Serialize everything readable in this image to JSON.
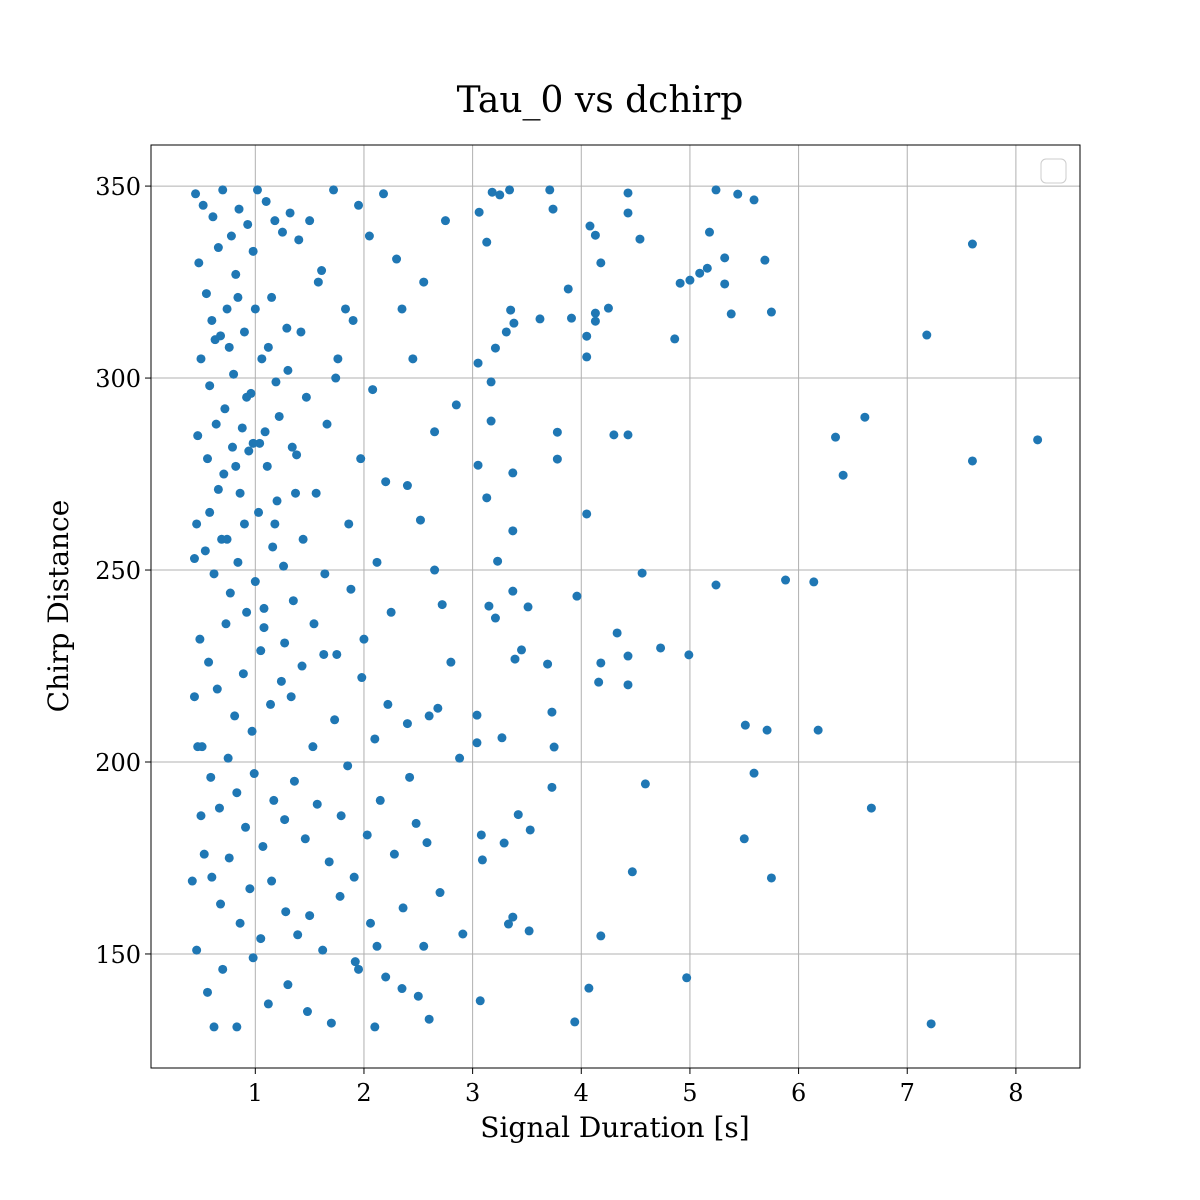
{
  "chart_data": {
    "type": "scatter",
    "title": "Tau_0 vs dchirp",
    "xlabel": "Signal Duration [s]",
    "ylabel": "Chirp Distance",
    "color": "#1f77b4",
    "grid": true,
    "xlim": [
      0.04,
      8.59
    ],
    "ylim": [
      120.3,
      360.7
    ],
    "xticks": [
      1,
      2,
      3,
      4,
      5,
      6,
      7,
      8
    ],
    "yticks": [
      150,
      200,
      250,
      300,
      350
    ],
    "x": [
      0.45,
      0.52,
      0.61,
      0.7,
      0.78,
      0.85,
      0.93,
      1.02,
      1.1,
      1.18,
      0.48,
      0.55,
      0.66,
      0.74,
      0.82,
      0.9,
      0.98,
      1.06,
      1.15,
      1.25,
      1.32,
      1.4,
      1.5,
      1.61,
      1.72,
      1.83,
      1.95,
      2.05,
      2.18,
      2.3,
      0.5,
      0.58,
      0.63,
      0.72,
      0.8,
      0.88,
      0.96,
      1.04,
      1.12,
      1.22,
      0.47,
      0.56,
      0.64,
      0.71,
      0.79,
      0.86,
      0.94,
      1.03,
      1.11,
      1.2,
      1.3,
      1.38,
      1.47,
      1.56,
      1.66,
      1.76,
      1.86,
      1.97,
      2.08,
      2.2,
      2.35,
      2.45,
      2.55,
      2.65,
      2.75,
      2.85,
      1.42,
      1.58,
      1.74,
      1.9,
      0.46,
      0.54,
      0.62,
      0.69,
      0.77,
      0.84,
      0.92,
      1.0,
      1.08,
      1.16,
      1.26,
      1.35,
      1.44,
      1.54,
      1.64,
      1.75,
      1.88,
      2.0,
      2.12,
      2.25,
      0.49,
      0.57,
      0.65,
      0.73,
      0.81,
      0.89,
      0.97,
      1.05,
      1.14,
      1.24,
      1.33,
      1.43,
      1.53,
      1.63,
      1.73,
      1.85,
      1.98,
      2.1,
      2.22,
      2.4,
      0.51,
      0.59,
      0.67,
      0.75,
      0.83,
      0.91,
      0.99,
      1.07,
      1.17,
      1.27,
      1.36,
      1.46,
      1.57,
      1.68,
      1.79,
      1.91,
      2.03,
      2.15,
      2.28,
      2.48,
      0.53,
      0.6,
      0.68,
      0.76,
      0.86,
      0.95,
      1.05,
      1.15,
      1.28,
      1.39,
      1.5,
      1.62,
      1.78,
      1.92,
      2.06,
      2.2,
      2.36,
      2.55,
      2.7,
      2.6,
      0.56,
      0.62,
      0.7,
      0.83,
      0.98,
      1.12,
      1.3,
      1.48,
      1.7,
      1.95,
      2.1,
      2.35,
      2.5,
      2.12,
      0.44,
      0.47,
      0.5,
      0.42,
      0.46,
      0.44,
      2.4,
      2.52,
      2.65,
      2.72,
      2.8,
      2.6,
      2.42,
      2.58,
      2.68,
      2.88,
      0.6,
      0.68,
      0.76,
      0.84,
      0.92,
      1.0,
      1.09,
      1.19,
      1.29,
      1.37,
      0.58,
      0.66,
      0.74,
      0.82,
      0.9,
      0.98,
      1.08,
      1.18,
      1.27,
      1.34,
      8.2,
      7.6,
      7.18,
      7.6,
      7.22,
      6.67,
      6.41,
      6.34,
      6.61,
      5.88,
      6.14,
      6.18,
      5.71,
      5.51,
      5.59,
      5.5,
      5.75,
      5.75,
      5.69,
      5.59,
      5.44,
      5.24,
      5.32,
      5.38,
      5.32,
      5.16,
      5.09,
      5.0,
      4.91,
      4.86,
      5.18,
      5.24,
      4.99,
      4.73,
      4.56,
      4.59,
      4.97,
      4.47,
      4.43,
      4.3,
      4.43,
      4.43,
      4.16,
      4.18,
      4.33,
      4.18,
      4.07,
      3.94,
      3.96,
      4.05,
      3.78,
      3.78,
      3.73,
      3.75,
      3.73,
      3.69,
      3.62,
      3.88,
      3.91,
      4.13,
      4.13,
      4.25,
      4.05,
      4.05,
      4.08,
      4.13,
      4.18,
      4.54,
      4.43,
      4.43,
      3.71,
      3.74,
      3.34,
      3.18,
      3.25,
      3.06,
      3.13,
      3.35,
      3.38,
      3.31,
      3.21,
      3.17,
      3.05,
      3.17,
      3.05,
      3.13,
      3.37,
      3.37,
      3.23,
      3.37,
      3.51,
      3.15,
      3.21,
      3.45,
      3.39,
      3.04,
      3.04,
      3.27,
      3.42,
      3.53,
      3.08,
      3.09,
      3.29,
      3.37,
      3.33,
      3.52,
      3.07,
      2.91
    ],
    "values": [
      348,
      345,
      342,
      349,
      337,
      344,
      340,
      349,
      346,
      341,
      330,
      322,
      334,
      318,
      327,
      312,
      333,
      305,
      321,
      338,
      343,
      336,
      341,
      328,
      349,
      318,
      345,
      337,
      348,
      331,
      305,
      298,
      310,
      292,
      301,
      287,
      296,
      283,
      308,
      290,
      285,
      279,
      288,
      275,
      282,
      270,
      281,
      265,
      277,
      268,
      302,
      280,
      295,
      270,
      288,
      305,
      262,
      279,
      297,
      273,
      318,
      305,
      325,
      286,
      341,
      293,
      312,
      325,
      300,
      315,
      262,
      255,
      249,
      258,
      244,
      252,
      239,
      247,
      235,
      256,
      251,
      242,
      258,
      236,
      249,
      228,
      245,
      232,
      252,
      239,
      232,
      226,
      219,
      236,
      212,
      223,
      208,
      229,
      215,
      221,
      217,
      225,
      204,
      228,
      211,
      199,
      222,
      206,
      215,
      210,
      204,
      196,
      188,
      201,
      192,
      183,
      197,
      178,
      190,
      185,
      195,
      180,
      189,
      174,
      186,
      170,
      181,
      190,
      176,
      184,
      176,
      170,
      163,
      175,
      158,
      167,
      154,
      169,
      161,
      155,
      160,
      151,
      165,
      148,
      158,
      144,
      162,
      152,
      166,
      133,
      140,
      131,
      146,
      131,
      149,
      137,
      142,
      135,
      132,
      146,
      131,
      141,
      139,
      152,
      217,
      204,
      186,
      169,
      151,
      253,
      272,
      263,
      250,
      241,
      226,
      212,
      196,
      179,
      214,
      201,
      315,
      311,
      308,
      321,
      295,
      318,
      286,
      299,
      313,
      270,
      265,
      271,
      258,
      277,
      262,
      283,
      240,
      262,
      231,
      282,
      283.9,
      334.9,
      311.2,
      278.4,
      131.8,
      188.0,
      274.7,
      284.6,
      289.8,
      247.4,
      246.9,
      208.3,
      208.3,
      209.6,
      197.1,
      180.0,
      169.8,
      317.2,
      330.7,
      346.4,
      347.9,
      349.0,
      331.3,
      316.7,
      324.5,
      328.6,
      327.3,
      325.5,
      324.7,
      310.2,
      338.0,
      246.1,
      227.9,
      229.7,
      249.2,
      194.3,
      143.8,
      171.4,
      285.2,
      285.2,
      220.1,
      227.6,
      220.8,
      225.8,
      233.6,
      154.7,
      141.1,
      132.3,
      243.2,
      264.6,
      278.9,
      285.9,
      213.0,
      203.9,
      193.4,
      225.5,
      315.4,
      323.2,
      315.6,
      316.9,
      314.8,
      318.2,
      310.9,
      305.5,
      339.6,
      337.2,
      330.0,
      336.2,
      343.0,
      348.2,
      349.0,
      344.0,
      349.0,
      348.4,
      347.7,
      343.2,
      335.4,
      317.7,
      314.3,
      312.0,
      307.8,
      299.0,
      303.9,
      288.8,
      277.3,
      268.8,
      275.3,
      260.2,
      252.3,
      244.5,
      240.4,
      240.6,
      237.5,
      229.2,
      226.8,
      212.2,
      205.0,
      206.3,
      186.3,
      182.3,
      181.0,
      174.5,
      178.9,
      159.6,
      157.8,
      156.0,
      137.8,
      155.2
    ]
  }
}
